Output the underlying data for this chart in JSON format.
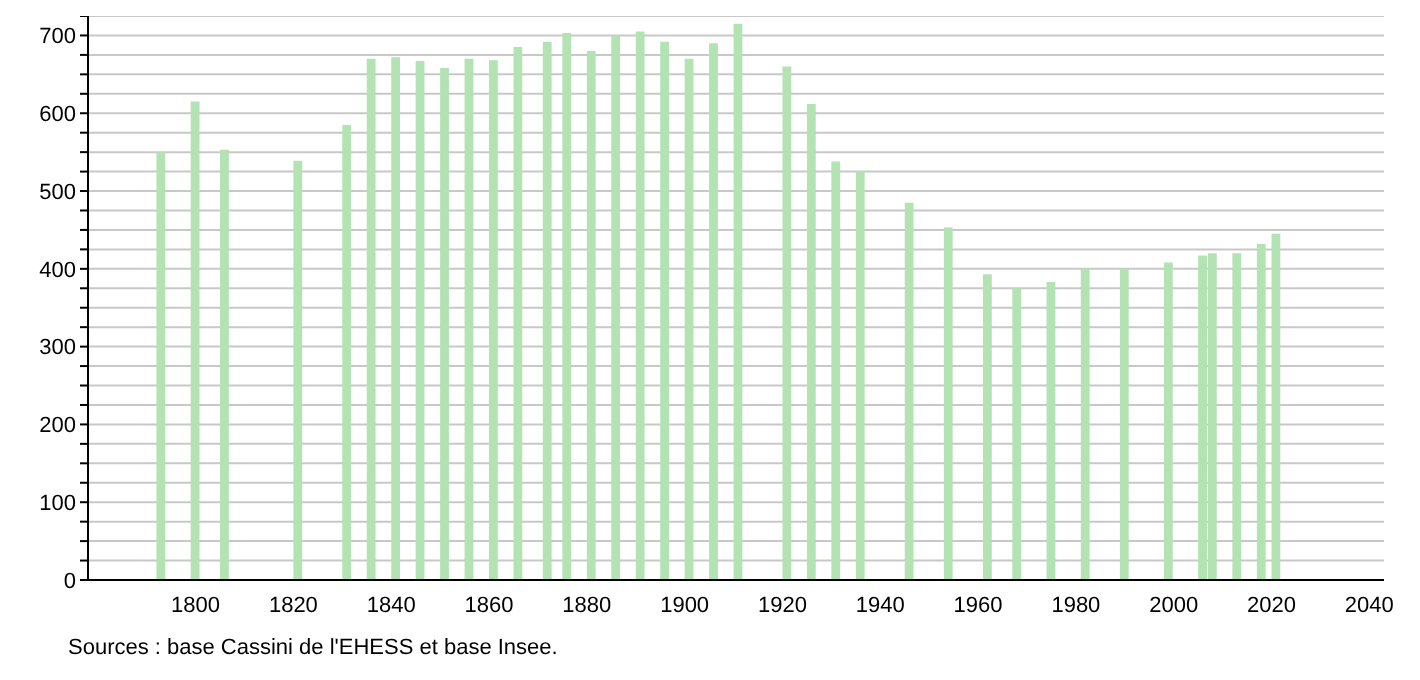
{
  "chart_data": {
    "type": "bar",
    "annotations": [
      "Sources : base Cassini de l'EHESS et base Insee."
    ],
    "x": [
      1793,
      1800,
      1806,
      1821,
      1831,
      1836,
      1841,
      1846,
      1851,
      1856,
      1861,
      1866,
      1872,
      1876,
      1881,
      1886,
      1891,
      1896,
      1901,
      1906,
      1911,
      1921,
      1926,
      1931,
      1936,
      1946,
      1954,
      1962,
      1968,
      1975,
      1982,
      1990,
      1999,
      2006,
      2008,
      2013,
      2018,
      2021
    ],
    "values": [
      550,
      615,
      553,
      539,
      585,
      670,
      672,
      667,
      658,
      670,
      668,
      685,
      692,
      703,
      680,
      700,
      705,
      692,
      670,
      690,
      715,
      660,
      612,
      538,
      525,
      485,
      453,
      393,
      375,
      383,
      400,
      400,
      408,
      417,
      420,
      420,
      432,
      445
    ],
    "color": "#b3e2b3",
    "xlim": [
      1778,
      2043
    ],
    "xticks": [
      1800,
      1820,
      1840,
      1860,
      1880,
      1900,
      1920,
      1940,
      1960,
      1980,
      2000,
      2020,
      2040
    ],
    "ylim": [
      0,
      725
    ],
    "yticks": [
      0,
      {
        "value": 25,
        "label": null
      },
      {
        "value": 50,
        "label": null
      },
      {
        "value": 75,
        "label": null
      },
      100,
      {
        "value": 125,
        "label": null
      },
      {
        "value": 150,
        "label": null
      },
      {
        "value": 175,
        "label": null
      },
      200,
      {
        "value": 225,
        "label": null
      },
      {
        "value": 250,
        "label": null
      },
      {
        "value": 275,
        "label": null
      },
      300,
      {
        "value": 325,
        "label": null
      },
      {
        "value": 350,
        "label": null
      },
      {
        "value": 375,
        "label": null
      },
      400,
      {
        "value": 425,
        "label": null
      },
      {
        "value": 450,
        "label": null
      },
      {
        "value": 475,
        "label": null
      },
      500,
      {
        "value": 525,
        "label": null
      },
      {
        "value": 550,
        "label": null
      },
      {
        "value": 575,
        "label": null
      },
      600,
      {
        "value": 625,
        "label": null
      },
      {
        "value": 650,
        "label": null
      },
      {
        "value": 675,
        "label": null
      },
      700,
      {
        "value": 725,
        "label": null
      }
    ],
    "grid": "y",
    "legend": false
  }
}
